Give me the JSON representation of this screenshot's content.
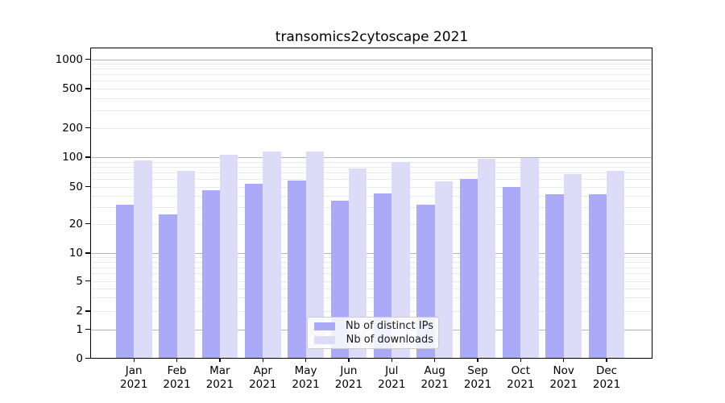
{
  "page": {
    "background": "#ffffff"
  },
  "chart_data": {
    "type": "bar",
    "title": "transomics2cytoscape 2021",
    "xlabel": "",
    "ylabel": "",
    "yscale": "symlog",
    "ylim": [
      0,
      1000
    ],
    "yticks": [
      0,
      1,
      2,
      5,
      10,
      20,
      50,
      100,
      200,
      500,
      1000
    ],
    "grid": true,
    "legend_position": "lower center",
    "categories": [
      "Jan 2021",
      "Feb 2021",
      "Mar 2021",
      "Apr 2021",
      "May 2021",
      "Jun 2021",
      "Jul 2021",
      "Aug 2021",
      "Sep 2021",
      "Oct 2021",
      "Nov 2021",
      "Dec 2021"
    ],
    "series": [
      {
        "name": "Nb of distinct IPs",
        "color": "#aaaaf8",
        "values": [
          32,
          25,
          46,
          53,
          58,
          35,
          42,
          32,
          60,
          50,
          41,
          41
        ]
      },
      {
        "name": "Nb of downloads",
        "color": "#dcdcf8",
        "values": [
          92,
          73,
          105,
          114,
          115,
          76,
          89,
          57,
          96,
          99,
          67,
          73
        ]
      }
    ],
    "colors": {
      "axis": "#000000",
      "major_grid": "#b3b3b3",
      "minor_grid": "#e9e9ee",
      "background": "#ffffff",
      "text": "#000000"
    }
  }
}
